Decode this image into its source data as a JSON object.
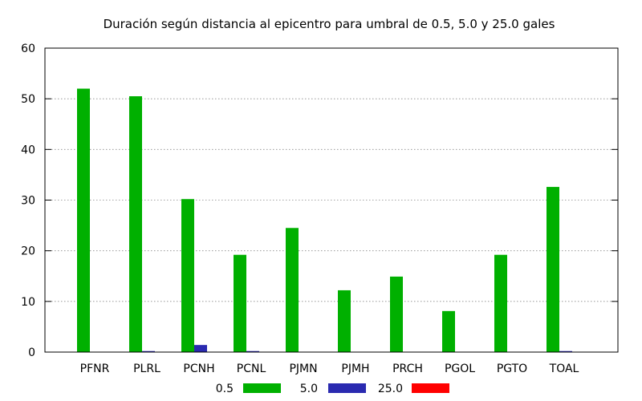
{
  "chart_data": {
    "type": "bar",
    "title": "Duración según distancia al epicentro para umbral de 0.5, 5.0 y 25.0 gales",
    "xlabel": "",
    "ylabel": "",
    "ylim": [
      0,
      60
    ],
    "yticks": [
      0,
      10,
      20,
      30,
      40,
      50,
      60
    ],
    "grid": true,
    "legend_position": "bottom",
    "categories": [
      "PFNR",
      "PLRL",
      "PCNH",
      "PCNL",
      "PJMN",
      "PJMH",
      "PRCH",
      "PGOL",
      "PGTO",
      "TOAL"
    ],
    "series": [
      {
        "name": "0.5",
        "color": "#00b000",
        "values": [
          52,
          50.5,
          30.2,
          19.2,
          24.5,
          12.2,
          14.9,
          8.1,
          19.2,
          32.6
        ]
      },
      {
        "name": "5.0",
        "color": "#2a2ab0",
        "values": [
          0,
          0.2,
          1.4,
          0.2,
          0,
          0,
          0,
          0,
          0,
          0.2
        ]
      },
      {
        "name": "25.0",
        "color": "#ff0000",
        "values": [
          0,
          0,
          0,
          0,
          0,
          0,
          0,
          0,
          0,
          0
        ]
      }
    ]
  }
}
